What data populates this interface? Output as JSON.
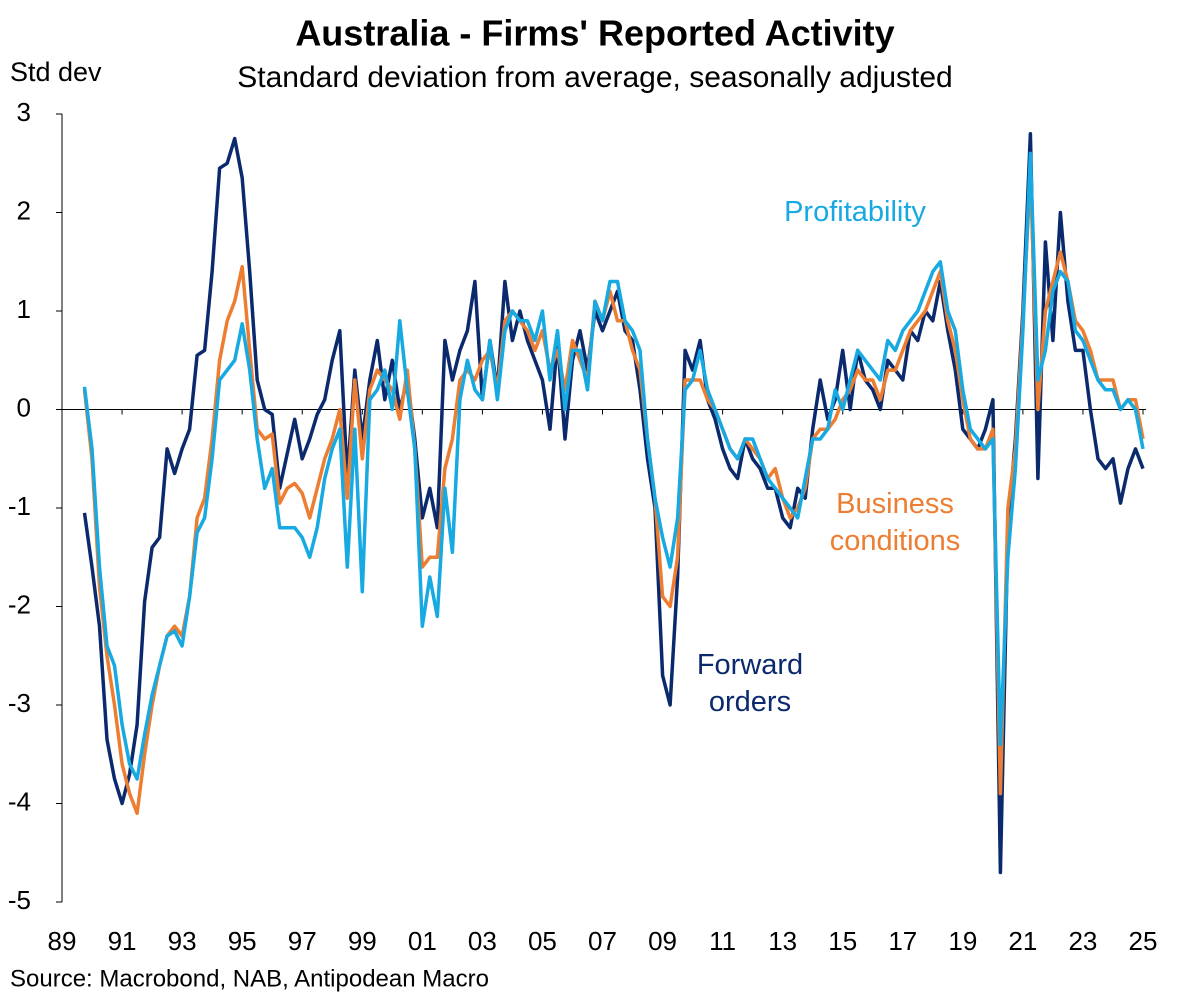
{
  "chart_data": {
    "type": "line",
    "title": "Australia - Firms' Reported Activity",
    "subtitle": "Standard deviation from average, seasonally adjusted",
    "y_label": "Std dev",
    "source": "Source: Macrobond, NAB, Antipodean Macro",
    "xlim": [
      1989,
      2025.1
    ],
    "ylim": [
      -5,
      3
    ],
    "yticks": [
      -5,
      -4,
      -3,
      -2,
      -1,
      0,
      1,
      2,
      3
    ],
    "xticks": [
      {
        "value": 1989,
        "label": "89"
      },
      {
        "value": 1991,
        "label": "91"
      },
      {
        "value": 1993,
        "label": "93"
      },
      {
        "value": 1995,
        "label": "95"
      },
      {
        "value": 1997,
        "label": "97"
      },
      {
        "value": 1999,
        "label": "99"
      },
      {
        "value": 2001,
        "label": "01"
      },
      {
        "value": 2003,
        "label": "03"
      },
      {
        "value": 2005,
        "label": "05"
      },
      {
        "value": 2007,
        "label": "07"
      },
      {
        "value": 2009,
        "label": "09"
      },
      {
        "value": 2011,
        "label": "11"
      },
      {
        "value": 2013,
        "label": "13"
      },
      {
        "value": 2015,
        "label": "15"
      },
      {
        "value": 2017,
        "label": "17"
      },
      {
        "value": 2019,
        "label": "19"
      },
      {
        "value": 2021,
        "label": "21"
      },
      {
        "value": 2023,
        "label": "23"
      },
      {
        "value": 2025,
        "label": "25"
      }
    ],
    "x": [
      1989.75,
      1990.0,
      1990.25,
      1990.5,
      1990.75,
      1991.0,
      1991.25,
      1991.5,
      1991.75,
      1992.0,
      1992.25,
      1992.5,
      1992.75,
      1993.0,
      1993.25,
      1993.5,
      1993.75,
      1994.0,
      1994.25,
      1994.5,
      1994.75,
      1995.0,
      1995.25,
      1995.5,
      1995.75,
      1996.0,
      1996.25,
      1996.5,
      1996.75,
      1997.0,
      1997.25,
      1997.5,
      1997.75,
      1998.0,
      1998.25,
      1998.5,
      1998.75,
      1999.0,
      1999.25,
      1999.5,
      1999.75,
      2000.0,
      2000.25,
      2000.5,
      2000.75,
      2001.0,
      2001.25,
      2001.5,
      2001.75,
      2002.0,
      2002.25,
      2002.5,
      2002.75,
      2003.0,
      2003.25,
      2003.5,
      2003.75,
      2004.0,
      2004.25,
      2004.5,
      2004.75,
      2005.0,
      2005.25,
      2005.5,
      2005.75,
      2006.0,
      2006.25,
      2006.5,
      2006.75,
      2007.0,
      2007.25,
      2007.5,
      2007.75,
      2008.0,
      2008.25,
      2008.5,
      2008.75,
      2009.0,
      2009.25,
      2009.5,
      2009.75,
      2010.0,
      2010.25,
      2010.5,
      2010.75,
      2011.0,
      2011.25,
      2011.5,
      2011.75,
      2012.0,
      2012.25,
      2012.5,
      2012.75,
      2013.0,
      2013.25,
      2013.5,
      2013.75,
      2014.0,
      2014.25,
      2014.5,
      2014.75,
      2015.0,
      2015.25,
      2015.5,
      2015.75,
      2016.0,
      2016.25,
      2016.5,
      2016.75,
      2017.0,
      2017.25,
      2017.5,
      2017.75,
      2018.0,
      2018.25,
      2018.5,
      2018.75,
      2019.0,
      2019.25,
      2019.5,
      2019.75,
      2020.0,
      2020.25,
      2020.5,
      2020.75,
      2021.0,
      2021.25,
      2021.5,
      2021.75,
      2022.0,
      2022.25,
      2022.5,
      2022.75,
      2023.0,
      2023.25,
      2023.5,
      2023.75,
      2024.0,
      2024.25,
      2024.5,
      2024.75,
      2025.0
    ],
    "series": [
      {
        "name": "Forward orders",
        "color": "#0b2a6e",
        "values": [
          -1.05,
          -1.6,
          -2.2,
          -3.35,
          -3.75,
          -4.0,
          -3.7,
          -3.2,
          -1.95,
          -1.4,
          -1.3,
          -0.4,
          -0.65,
          -0.4,
          -0.2,
          0.55,
          0.6,
          1.4,
          2.45,
          2.5,
          2.75,
          2.35,
          1.4,
          0.3,
          0.0,
          -0.05,
          -0.8,
          -0.45,
          -0.1,
          -0.5,
          -0.3,
          -0.05,
          0.1,
          0.5,
          0.8,
          -0.7,
          0.4,
          -0.3,
          0.3,
          0.7,
          0.1,
          0.5,
          0.0,
          0.3,
          -0.3,
          -1.1,
          -0.8,
          -1.2,
          0.7,
          0.3,
          0.6,
          0.8,
          1.3,
          0.1,
          0.7,
          0.2,
          1.3,
          0.7,
          1.0,
          0.7,
          0.5,
          0.3,
          -0.2,
          0.7,
          -0.3,
          0.5,
          0.8,
          0.4,
          1.0,
          0.8,
          1.0,
          1.2,
          0.8,
          0.7,
          0.2,
          -0.5,
          -1.0,
          -2.7,
          -3.0,
          -1.7,
          0.6,
          0.4,
          0.7,
          0.1,
          -0.1,
          -0.4,
          -0.6,
          -0.7,
          -0.3,
          -0.5,
          -0.6,
          -0.8,
          -0.8,
          -1.1,
          -1.2,
          -0.8,
          -0.9,
          -0.2,
          0.3,
          -0.1,
          0.1,
          0.6,
          0.0,
          0.6,
          0.3,
          0.2,
          0.0,
          0.5,
          0.4,
          0.3,
          0.8,
          0.7,
          1.0,
          0.9,
          1.3,
          0.8,
          0.4,
          -0.2,
          -0.3,
          -0.4,
          -0.2,
          0.1,
          -4.7,
          -1.2,
          -0.3,
          1.0,
          2.8,
          -0.7,
          1.7,
          0.7,
          2.0,
          1.1,
          0.6,
          0.6,
          0.0,
          -0.5,
          -0.6,
          -0.5,
          -0.95,
          -0.6,
          -0.4,
          -0.6
        ]
      },
      {
        "name": "Business conditions",
        "color": "#ed7d31",
        "values": [
          0.2,
          -0.5,
          -1.8,
          -2.5,
          -3.0,
          -3.6,
          -3.9,
          -4.1,
          -3.5,
          -3.0,
          -2.6,
          -2.3,
          -2.2,
          -2.3,
          -1.9,
          -1.1,
          -0.9,
          -0.3,
          0.5,
          0.9,
          1.1,
          1.45,
          0.6,
          -0.2,
          -0.3,
          -0.25,
          -0.95,
          -0.8,
          -0.75,
          -0.85,
          -1.1,
          -0.8,
          -0.5,
          -0.3,
          0.0,
          -0.9,
          0.3,
          -0.5,
          0.2,
          0.4,
          0.3,
          0.2,
          -0.1,
          0.4,
          -0.4,
          -1.6,
          -1.5,
          -1.5,
          -0.6,
          -0.3,
          0.3,
          0.4,
          0.3,
          0.5,
          0.6,
          0.2,
          0.9,
          1.0,
          0.9,
          0.8,
          0.6,
          0.8,
          0.4,
          0.6,
          0.2,
          0.7,
          0.5,
          0.3,
          1.1,
          0.9,
          1.2,
          0.9,
          0.9,
          0.6,
          0.4,
          -0.3,
          -0.9,
          -1.9,
          -2.0,
          -1.5,
          0.3,
          0.3,
          0.3,
          0.1,
          0.0,
          -0.2,
          -0.4,
          -0.5,
          -0.3,
          -0.4,
          -0.5,
          -0.7,
          -0.6,
          -0.9,
          -1.1,
          -1.0,
          -0.8,
          -0.3,
          -0.2,
          -0.2,
          -0.1,
          0.1,
          0.2,
          0.4,
          0.3,
          0.3,
          0.1,
          0.4,
          0.4,
          0.6,
          0.8,
          0.9,
          1.0,
          1.2,
          1.4,
          0.9,
          0.6,
          0.1,
          -0.3,
          -0.4,
          -0.4,
          -0.2,
          -3.9,
          -1.0,
          -0.4,
          0.9,
          2.4,
          0.0,
          1.0,
          1.3,
          1.6,
          1.3,
          0.9,
          0.8,
          0.6,
          0.3,
          0.3,
          0.3,
          0.0,
          0.1,
          0.1,
          -0.3
        ]
      },
      {
        "name": "Profitability",
        "color": "#17a9e1",
        "values": [
          0.23,
          -0.4,
          -1.6,
          -2.4,
          -2.6,
          -3.2,
          -3.6,
          -3.75,
          -3.3,
          -2.9,
          -2.6,
          -2.3,
          -2.25,
          -2.4,
          -1.9,
          -1.25,
          -1.1,
          -0.5,
          0.3,
          0.4,
          0.5,
          0.87,
          0.4,
          -0.3,
          -0.8,
          -0.6,
          -1.2,
          -1.2,
          -1.2,
          -1.3,
          -1.5,
          -1.2,
          -0.7,
          -0.4,
          -0.2,
          -1.6,
          -0.2,
          -1.85,
          0.1,
          0.2,
          0.4,
          0.0,
          0.9,
          0.2,
          -0.4,
          -2.2,
          -1.7,
          -2.1,
          -0.8,
          -1.45,
          0.1,
          0.5,
          0.2,
          0.1,
          0.7,
          0.1,
          0.8,
          1.0,
          0.9,
          0.9,
          0.7,
          1.0,
          0.3,
          0.8,
          0.0,
          0.6,
          0.6,
          0.2,
          1.1,
          0.9,
          1.3,
          1.3,
          0.9,
          0.8,
          0.6,
          -0.3,
          -0.9,
          -1.3,
          -1.6,
          -1.1,
          0.2,
          0.3,
          0.6,
          0.2,
          0.0,
          -0.2,
          -0.4,
          -0.5,
          -0.3,
          -0.3,
          -0.5,
          -0.7,
          -0.8,
          -0.9,
          -1.0,
          -1.1,
          -0.7,
          -0.3,
          -0.3,
          -0.2,
          0.2,
          0.0,
          0.3,
          0.6,
          0.5,
          0.4,
          0.3,
          0.7,
          0.6,
          0.8,
          0.9,
          1.0,
          1.2,
          1.4,
          1.5,
          1.0,
          0.8,
          0.2,
          -0.2,
          -0.3,
          -0.4,
          -0.3,
          -3.4,
          -1.5,
          -0.6,
          0.8,
          2.6,
          0.3,
          0.6,
          1.2,
          1.4,
          1.3,
          0.8,
          0.7,
          0.5,
          0.3,
          0.2,
          0.2,
          0.0,
          0.1,
          0.0,
          -0.4
        ]
      }
    ]
  }
}
